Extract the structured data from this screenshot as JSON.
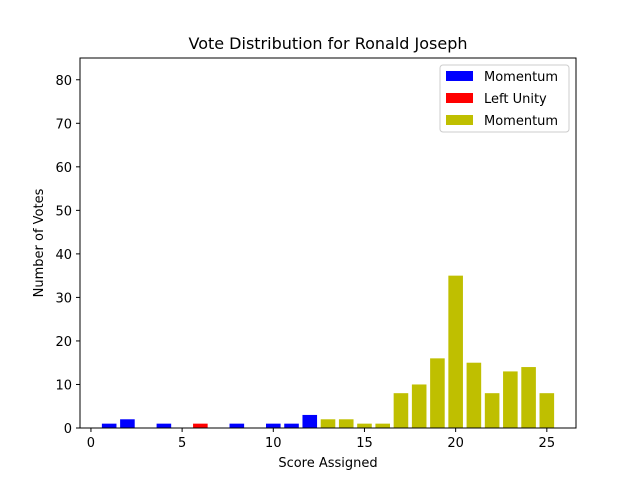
{
  "chart_data": {
    "type": "bar",
    "title": "Vote Distribution for Ronald Joseph",
    "xlabel": "Score Assigned",
    "ylabel": "Number of Votes",
    "xlim": [
      -0.6,
      26.6
    ],
    "ylim": [
      0,
      85
    ],
    "xticks": [
      0,
      5,
      10,
      15,
      20,
      25
    ],
    "yticks": [
      0,
      10,
      20,
      30,
      40,
      50,
      60,
      70,
      80
    ],
    "grid": false,
    "legend_position": "top-right",
    "series": [
      {
        "name": "Momentum",
        "color": "#0000ff",
        "x": [
          1,
          2,
          4,
          8,
          10,
          11,
          12
        ],
        "values": [
          1,
          2,
          1,
          1,
          1,
          1,
          3
        ]
      },
      {
        "name": "Left Unity",
        "color": "#ff0000",
        "x": [
          6
        ],
        "values": [
          1
        ]
      },
      {
        "name": "Momentum",
        "color": "#bfbf00",
        "x": [
          13,
          14,
          15,
          16,
          17,
          18,
          19,
          20,
          21,
          22,
          23,
          24,
          25
        ],
        "values": [
          2,
          2,
          1,
          1,
          8,
          10,
          16,
          35,
          15,
          8,
          13,
          14,
          8
        ]
      }
    ]
  }
}
